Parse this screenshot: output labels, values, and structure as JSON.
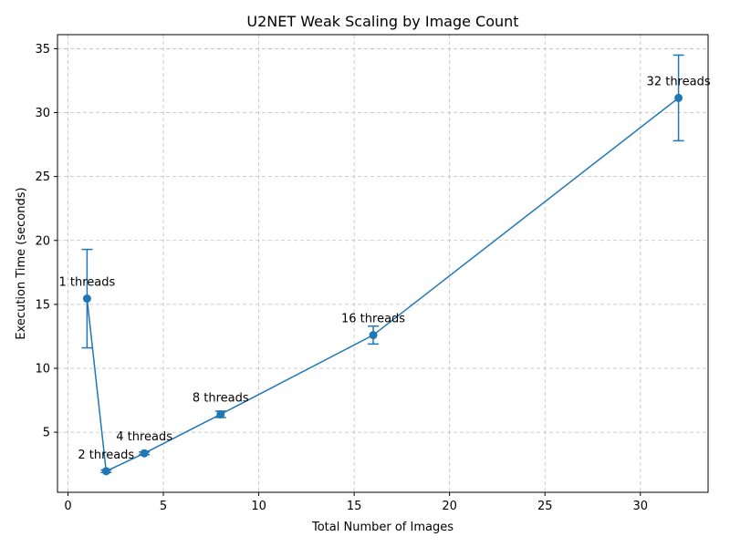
{
  "chart_data": {
    "type": "line",
    "title": "U2NET Weak Scaling by Image Count",
    "xlabel": "Total Number of Images",
    "ylabel": "Execution Time (seconds)",
    "xlim": [
      -0.55,
      33.55
    ],
    "ylim": [
      0.3,
      36.1
    ],
    "xticks": [
      0,
      5,
      10,
      15,
      20,
      25,
      30
    ],
    "yticks": [
      5,
      10,
      15,
      20,
      25,
      30,
      35
    ],
    "grid": true,
    "color": "#1f77b4",
    "x": [
      1,
      2,
      4,
      8,
      16,
      32
    ],
    "y": [
      15.45,
      1.95,
      3.35,
      6.4,
      12.6,
      31.15
    ],
    "yerr": [
      3.85,
      0.1,
      0.1,
      0.25,
      0.7,
      3.35
    ],
    "point_labels": [
      "1 threads",
      "2 threads",
      "4 threads",
      "8 threads",
      "16 threads",
      "32 threads"
    ]
  }
}
